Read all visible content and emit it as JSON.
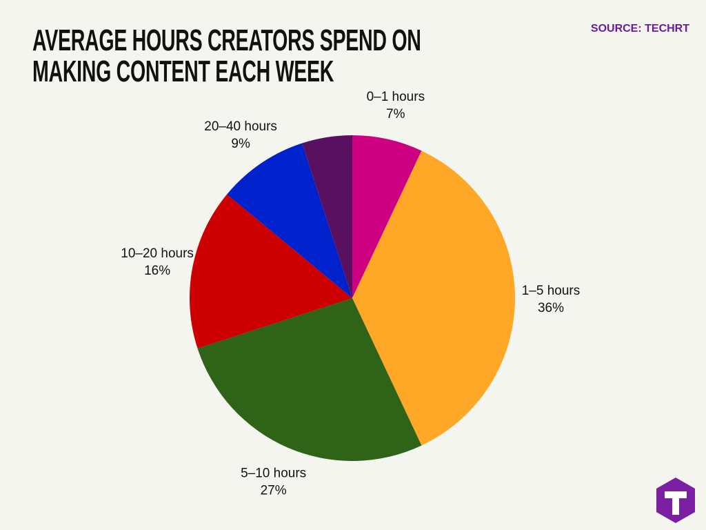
{
  "title": "AVERAGE HOURS CREATORS SPEND ON MAKING CONTENT EACH WEEK",
  "source": "SOURCE: TECHRT",
  "chart_data": {
    "type": "pie",
    "categories": [
      "0–1 hours",
      "1–5 hours",
      "5–10 hours",
      "10–20 hours",
      "20–40 hours",
      null
    ],
    "values": [
      7,
      36,
      27,
      16,
      9,
      5
    ],
    "value_labels": [
      "7%",
      "36%",
      "27%",
      "16%",
      "9%",
      null
    ],
    "colors": [
      "#cc0080",
      "#ffa726",
      "#2e6318",
      "#cc0000",
      "#0022cc",
      "#5a1060"
    ]
  }
}
